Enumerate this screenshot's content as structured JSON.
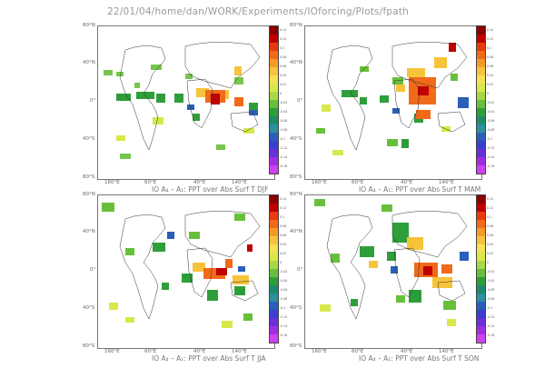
{
  "header": {
    "path": "22/01/04/home/dan/WORK/Experiments/IOforcing/Plots/fpath"
  },
  "axes": {
    "y_labels": [
      "80°N",
      "40°N",
      "0°",
      "40°S",
      "80°S"
    ],
    "x_labels": [
      "160°E",
      "60°E",
      "40°E",
      "140°E"
    ]
  },
  "panels": [
    {
      "caption": "IO A₄ – A₁: PPT over Abs Surf T  DJF"
    },
    {
      "caption": "IO A₄ – A₁: PPT over Abs Surf T  MAM"
    },
    {
      "caption": "IO A₄ – A₁: PPT over Abs Surf T  JJA"
    },
    {
      "caption": "IO A₄ – A₁: PPT over Abs Surf T  SON"
    }
  ],
  "colorbar": {
    "colors": [
      "#8b0000",
      "#c00000",
      "#e83a0a",
      "#f06a1a",
      "#f59a2a",
      "#f7c33a",
      "#f5e05a",
      "#d8e84a",
      "#a8d84a",
      "#68c03a",
      "#2e9e3a",
      "#1f8a6a",
      "#2a8f9e",
      "#2a5fb8",
      "#3a3fcf",
      "#6a2fd8",
      "#a02fe0",
      "#d040f0"
    ],
    "ticks": [
      "0.14",
      "0.12",
      "0.1",
      "0.08",
      "0.06",
      "0.04",
      "0.02",
      "0",
      "-0.02",
      "-0.04",
      "-0.06",
      "-0.08",
      "-0.1",
      "-0.12",
      "-0.14",
      "-0.16"
    ]
  },
  "colors": {
    "land_outline": "#333333",
    "frame": "#777777"
  }
}
